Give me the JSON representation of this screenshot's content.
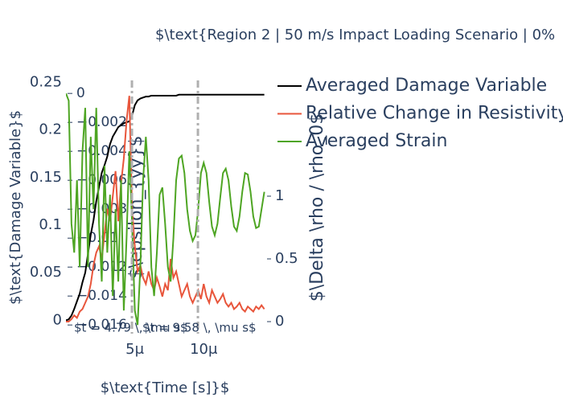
{
  "chart_data": {
    "type": "line",
    "title": "$\\text{Region 2 | 50 m/s Impact Loading Scenario | 0%",
    "x_label": "$\\text{Time [s]}$",
    "y_label": "$\\text{Damage Variable}$",
    "y2_label": "$\\epsilon_{yy}$",
    "y3_label": "$\\Delta \\rho / \\rho_0$",
    "x": [
      0,
      2e-07,
      4e-07,
      6e-07,
      8e-07,
      1e-06,
      1.2e-06,
      1.4e-06,
      1.6e-06,
      1.8e-06,
      2e-06,
      2.2e-06,
      2.4e-06,
      2.6e-06,
      2.8e-06,
      3e-06,
      3.2e-06,
      3.4e-06,
      3.6e-06,
      3.8e-06,
      4e-06,
      4.2e-06,
      4.4e-06,
      4.6e-06,
      4.8e-06,
      5e-06,
      5.2e-06,
      5.4e-06,
      5.6e-06,
      5.8e-06,
      6e-06,
      6.2e-06,
      6.4e-06,
      6.6e-06,
      6.8e-06,
      7e-06,
      7.2e-06,
      7.4e-06,
      7.6e-06,
      7.8e-06,
      8e-06,
      8.2e-06,
      8.4e-06,
      8.6e-06,
      8.8e-06,
      9e-06,
      9.2e-06,
      9.4e-06,
      9.6e-06,
      9.8e-06,
      1e-05,
      1.02e-05,
      1.04e-05,
      1.06e-05,
      1.08e-05,
      1.1e-05,
      1.12e-05,
      1.14e-05,
      1.16e-05,
      1.18e-05,
      1.2e-05,
      1.22e-05,
      1.24e-05,
      1.26e-05,
      1.28e-05,
      1.3e-05,
      1.32e-05,
      1.34e-05,
      1.36e-05,
      1.38e-05,
      1.4e-05,
      1.42e-05,
      1.44e-05
    ],
    "series": [
      {
        "name": "Averaged Damage Variable",
        "color": "#000000",
        "axis": "y",
        "values": [
          0,
          0.001,
          0.005,
          0.012,
          0.02,
          0.028,
          0.04,
          0.05,
          0.07,
          0.09,
          0.105,
          0.125,
          0.14,
          0.155,
          0.163,
          0.172,
          0.185,
          0.193,
          0.198,
          0.203,
          0.205,
          0.207,
          0.208,
          0.209,
          0.215,
          0.226,
          0.231,
          0.233,
          0.234,
          0.235,
          0.235,
          0.236,
          0.236,
          0.236,
          0.236,
          0.236,
          0.236,
          0.236,
          0.236,
          0.236,
          0.236,
          0.237,
          0.237,
          0.237,
          0.237,
          0.237,
          0.237,
          0.237,
          0.237,
          0.237,
          0.237,
          0.237,
          0.237,
          0.237,
          0.237,
          0.237,
          0.237,
          0.237,
          0.237,
          0.237,
          0.237,
          0.237,
          0.237,
          0.237,
          0.237,
          0.237,
          0.237,
          0.237,
          0.237,
          0.237,
          0.237,
          0.237,
          0.237
        ]
      },
      {
        "name": "Relative Change in Resistivity",
        "color": "#e8553b",
        "axis": "y3",
        "values": [
          0,
          0,
          0.02,
          0.05,
          0.03,
          0.08,
          0.1,
          0.15,
          0.2,
          0.3,
          0.45,
          0.55,
          0.6,
          0.5,
          0.7,
          0.9,
          0.8,
          1.0,
          1.2,
          0.8,
          1.1,
          1.3,
          1.6,
          1.8,
          0.9,
          0.6,
          0.4,
          0.45,
          0.35,
          0.3,
          0.4,
          0.3,
          0.25,
          0.35,
          0.28,
          0.2,
          0.3,
          0.25,
          0.5,
          0.35,
          0.4,
          0.3,
          0.2,
          0.25,
          0.3,
          0.2,
          0.15,
          0.2,
          0.25,
          0.18,
          0.3,
          0.2,
          0.15,
          0.25,
          0.2,
          0.15,
          0.18,
          0.22,
          0.15,
          0.12,
          0.15,
          0.1,
          0.12,
          0.15,
          0.1,
          0.08,
          0.12,
          0.1,
          0.08,
          0.12,
          0.1,
          0.13,
          0.1
        ]
      },
      {
        "name": "Averaged Strain",
        "color": "#4ea523",
        "axis": "y2",
        "values": [
          0,
          -0.0005,
          -0.009,
          -0.011,
          -0.006,
          -0.012,
          -0.004,
          -0.001,
          -0.012,
          -0.003,
          -0.008,
          -0.001,
          -0.009,
          -0.013,
          -0.005,
          -0.011,
          -0.007,
          -0.014,
          -0.008,
          -0.013,
          -0.006,
          -0.015,
          -0.01,
          -0.004,
          -0.009,
          -0.015,
          -0.016,
          -0.012,
          -0.006,
          -0.003,
          -0.006,
          -0.012,
          -0.014,
          -0.011,
          -0.007,
          -0.0065,
          -0.009,
          -0.012,
          -0.013,
          -0.01,
          -0.006,
          -0.0045,
          -0.0043,
          -0.0055,
          -0.008,
          -0.0095,
          -0.0102,
          -0.0098,
          -0.008,
          -0.0055,
          -0.0048,
          -0.0055,
          -0.0075,
          -0.0092,
          -0.0098,
          -0.009,
          -0.0072,
          -0.0055,
          -0.0052,
          -0.006,
          -0.0078,
          -0.0092,
          -0.0095,
          -0.0085,
          -0.0068,
          -0.0055,
          -0.0056,
          -0.0068,
          -0.0085,
          -0.0093,
          -0.0092,
          -0.008,
          -0.0068
        ]
      }
    ],
    "xlim": [
      0,
      1.448e-05
    ],
    "xticks": [
      {
        "value": 5e-06,
        "label": "5μ"
      },
      {
        "value": 1e-05,
        "label": "10μ"
      }
    ],
    "ylim": [
      -0.014,
      0.252
    ],
    "yticks": [
      0,
      0.05,
      0.1,
      0.15,
      0.2,
      0.25
    ],
    "y2lim": [
      -0.0166,
      0.0009
    ],
    "y2ticks": [
      0,
      {
        "value": -0.002,
        "label": "−0.002"
      },
      {
        "value": -0.004,
        "label": "−0.004"
      },
      {
        "value": -0.006,
        "label": "−0.006"
      },
      {
        "value": -0.008,
        "label": "−0.008"
      },
      {
        "value": -0.01,
        "label": "−0.01"
      },
      {
        "value": -0.012,
        "label": "−0.012"
      },
      {
        "value": -0.014,
        "label": "−0.014"
      },
      {
        "value": -0.016,
        "label": "−0.016"
      }
    ],
    "y3lim": [
      -0.096,
      1.923
    ],
    "y3ticks": [
      0,
      0.5,
      1
    ],
    "annotations": [
      {
        "text": "$t = 4.79 \\, \\mu s$",
        "x": 4.79e-06
      },
      {
        "text": "$t = 9.58 \\, \\mu s$",
        "x": 9.58e-06
      }
    ],
    "legend": "right"
  }
}
